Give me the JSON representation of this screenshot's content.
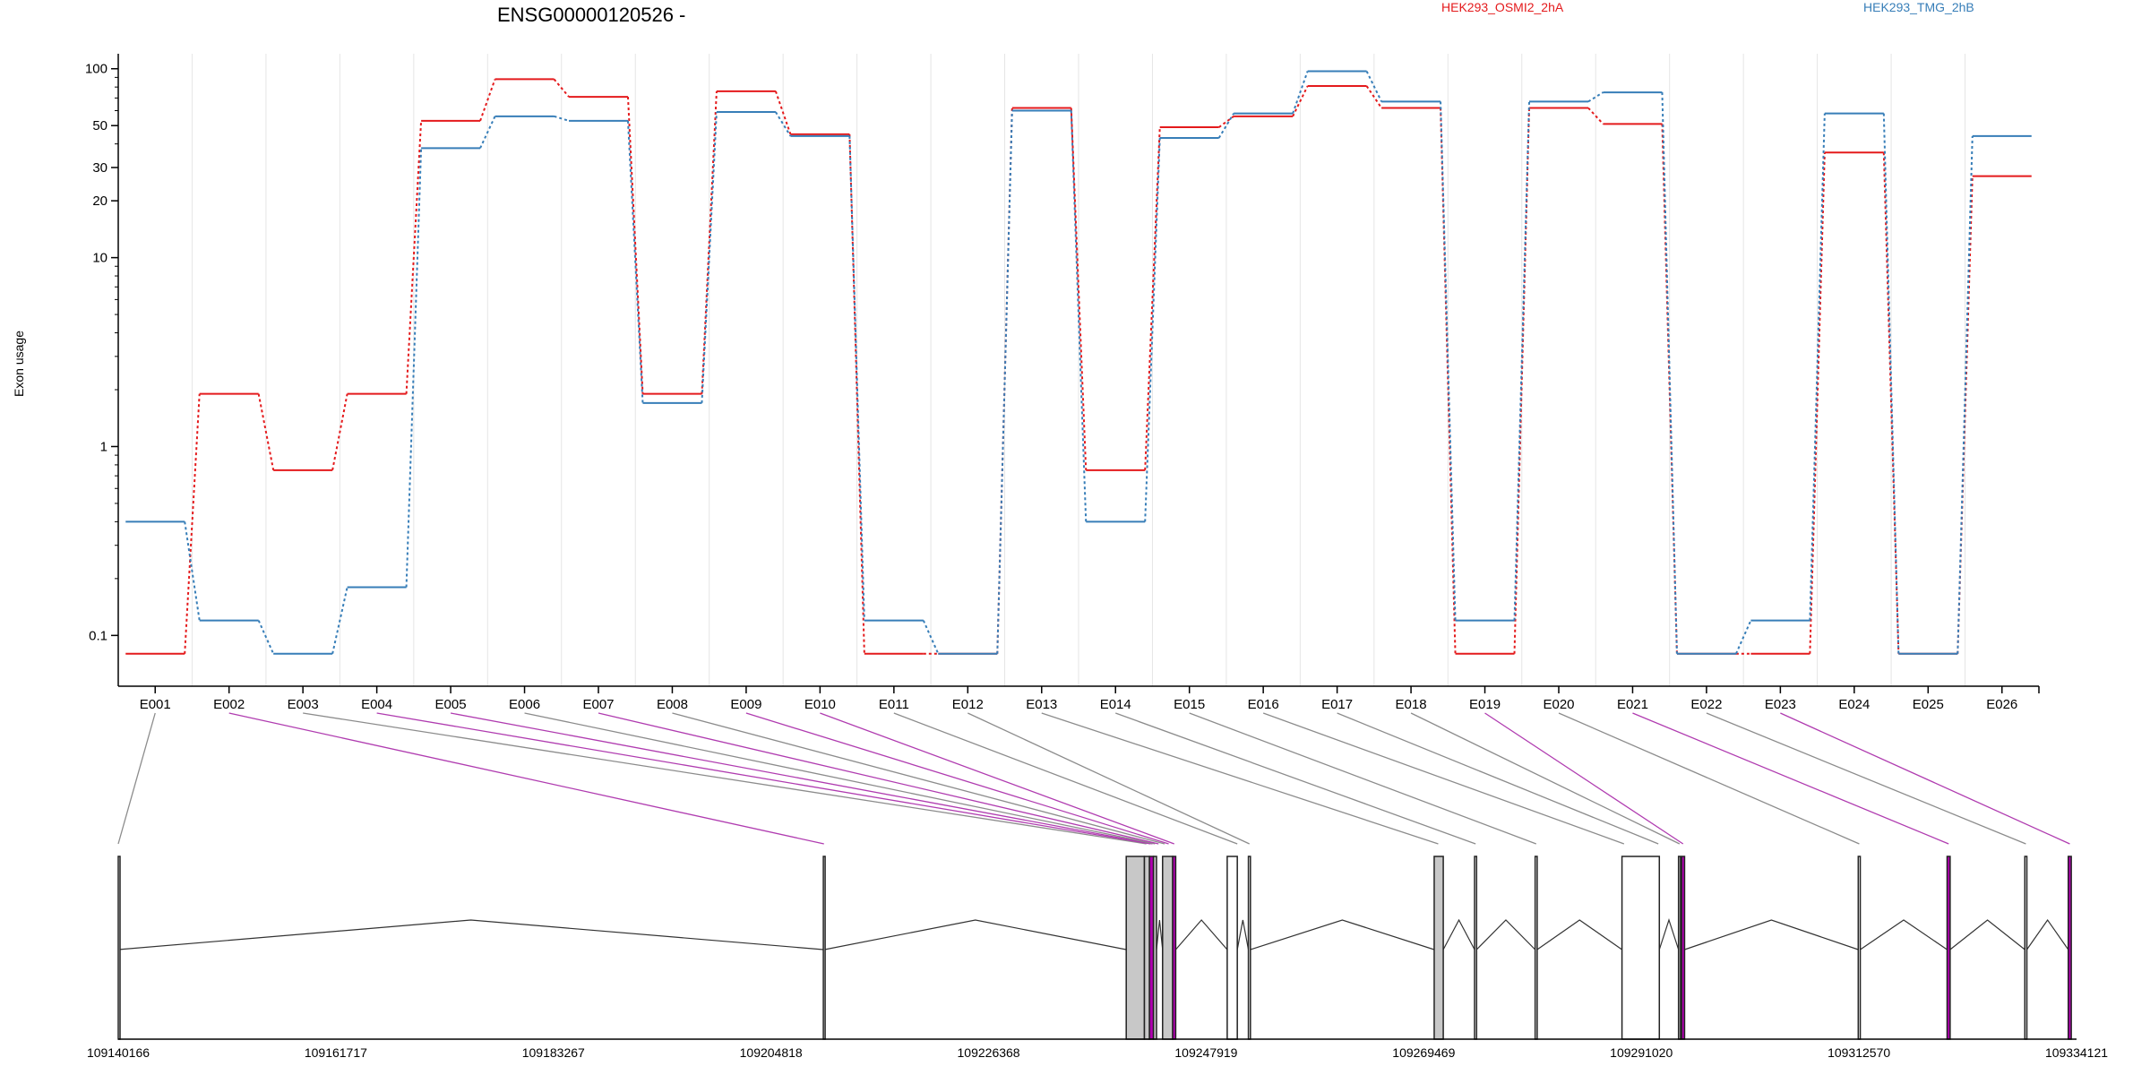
{
  "title": "ENSG00000120526 -",
  "ylabel": "Exon usage",
  "legend": [
    {
      "name": "HEK293_OSMI2_2hA",
      "color": "#e41a1c"
    },
    {
      "name": "HEK293_TMG_2hB",
      "color": "#377eb8"
    }
  ],
  "chart_data": {
    "type": "line",
    "title": "ENSG00000120526 -",
    "ylabel": "Exon usage",
    "xlabel": "",
    "yscale": "log",
    "ylim": [
      0.07,
      110
    ],
    "yticks": [
      0.1,
      1,
      10,
      20,
      30,
      50,
      100
    ],
    "ytick_labels": [
      "0.1",
      "1",
      "10",
      "20",
      "30",
      "50",
      "100"
    ],
    "grid": "vertical",
    "legend_position": "top",
    "categories": [
      "E001",
      "E002",
      "E003",
      "E004",
      "E005",
      "E006",
      "E007",
      "E008",
      "E009",
      "E010",
      "E011",
      "E012",
      "E013",
      "E014",
      "E015",
      "E016",
      "E017",
      "E018",
      "E019",
      "E020",
      "E021",
      "E022",
      "E023",
      "E024",
      "E025",
      "E026"
    ],
    "series": [
      {
        "name": "HEK293_OSMI2_2hA",
        "color": "#e41a1c",
        "values": [
          0.08,
          1.9,
          0.75,
          1.9,
          53,
          88,
          71,
          1.9,
          76,
          45,
          0.08,
          0.08,
          62,
          0.75,
          49,
          56,
          81,
          62,
          0.08,
          62,
          51,
          0.08,
          0.08,
          36,
          0.08,
          27
        ]
      },
      {
        "name": "HEK293_TMG_2hB",
        "color": "#377eb8",
        "values": [
          0.4,
          0.12,
          0.08,
          0.18,
          38,
          56,
          53,
          1.7,
          59,
          44,
          0.12,
          0.08,
          60,
          0.4,
          43,
          58,
          97,
          67,
          0.12,
          67,
          75,
          0.08,
          0.12,
          58,
          0.08,
          44
        ]
      }
    ]
  },
  "gene_model": {
    "coord_range": [
      109140166,
      109334121
    ],
    "tick_labels": [
      "109140166",
      "109161717",
      "109183267",
      "109204818",
      "109226368",
      "109247919",
      "109269469",
      "109291020",
      "109312570",
      "109334121"
    ],
    "exons": [
      {
        "start": 109140166,
        "end": 109140170,
        "fill": "#ffffff"
      },
      {
        "start": 109210000,
        "end": 109210120,
        "fill": "#ffffff"
      },
      {
        "start": 109240000,
        "end": 109241800,
        "fill": "#c8c8c8"
      },
      {
        "start": 109241800,
        "end": 109242300,
        "fill": "#c8c8c8"
      },
      {
        "start": 109242300,
        "end": 109242700,
        "fill": "#b000b0"
      },
      {
        "start": 109242700,
        "end": 109243000,
        "fill": "#c8c8c8"
      },
      {
        "start": 109243600,
        "end": 109244600,
        "fill": "#c8c8c8"
      },
      {
        "start": 109244600,
        "end": 109244900,
        "fill": "#b000b0"
      },
      {
        "start": 109250000,
        "end": 109251000,
        "fill": "#ffffff"
      },
      {
        "start": 109252100,
        "end": 109252300,
        "fill": "#ffffff"
      },
      {
        "start": 109270500,
        "end": 109271400,
        "fill": "#c8c8c8"
      },
      {
        "start": 109274500,
        "end": 109274700,
        "fill": "#ffffff"
      },
      {
        "start": 109280500,
        "end": 109280700,
        "fill": "#ffffff"
      },
      {
        "start": 109289100,
        "end": 109292800,
        "fill": "#ffffff"
      },
      {
        "start": 109294700,
        "end": 109294900,
        "fill": "#c8c8c8"
      },
      {
        "start": 109295000,
        "end": 109295300,
        "fill": "#b000b0"
      },
      {
        "start": 109312500,
        "end": 109312700,
        "fill": "#ffffff"
      },
      {
        "start": 109321300,
        "end": 109321600,
        "fill": "#b000b0"
      },
      {
        "start": 109329000,
        "end": 109329200,
        "fill": "#ffffff"
      },
      {
        "start": 109333300,
        "end": 109333600,
        "fill": "#b000b0"
      }
    ],
    "connector_targets": [
      109140166,
      109210060,
      109242000,
      109242400,
      109242600,
      109242850,
      109243200,
      109243800,
      109244200,
      109244750,
      109251000,
      109252200,
      109270900,
      109274600,
      109280600,
      109289300,
      109292700,
      109294800,
      109295150,
      109312600,
      109321450,
      109329100,
      109333450
    ],
    "connector_highlight": [
      false,
      true,
      false,
      true,
      true,
      false,
      true,
      false,
      true,
      true,
      false,
      false,
      false,
      false,
      false,
      false,
      false,
      false,
      true,
      false,
      true,
      false,
      true
    ]
  }
}
